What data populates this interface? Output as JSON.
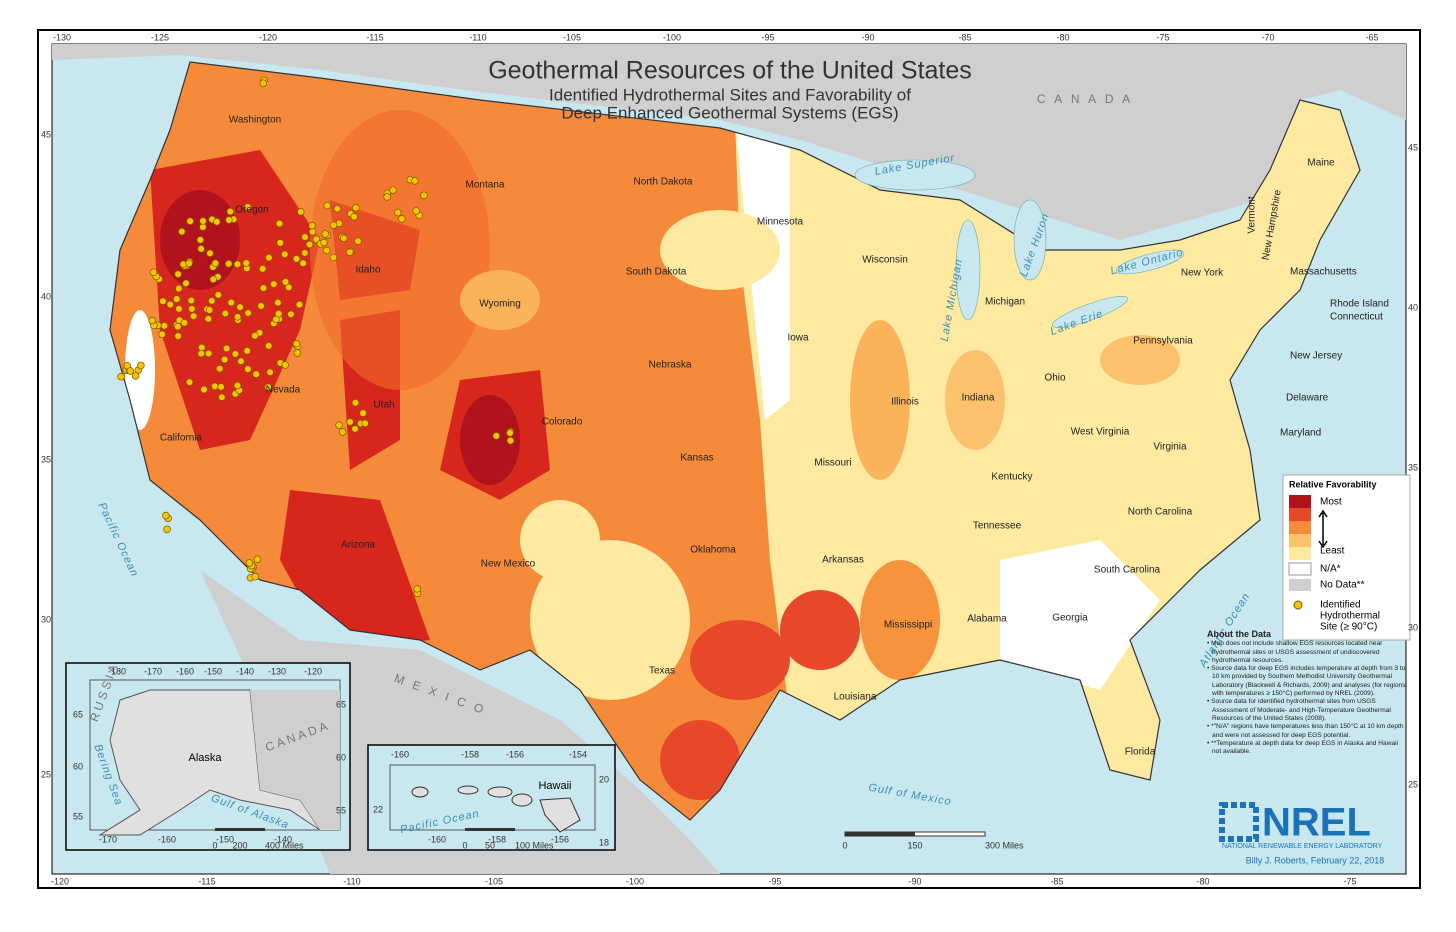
{
  "title": "Geothermal Resources of the United States",
  "subtitle": [
    "Identified Hydrothermal Sites and Favorability of",
    "Deep Enhanced Geothermal Systems (EGS)"
  ],
  "graticule": {
    "top": [
      "-130",
      "-125",
      "-120",
      "-115",
      "-110",
      "-105",
      "-100",
      "-95",
      "-90",
      "-85",
      "-80",
      "-75",
      "-70",
      "-65"
    ],
    "bottom": [
      "-120",
      "-115",
      "-110",
      "-105",
      "-100",
      "-95",
      "-90",
      "-85",
      "-80",
      "-75"
    ],
    "left": [
      "45",
      "40",
      "35",
      "30",
      "25"
    ],
    "right": [
      "45",
      "40",
      "35",
      "30",
      "25"
    ]
  },
  "states": [
    "Washington",
    "Oregon",
    "Montana",
    "North Dakota",
    "Minnesota",
    "Wisconsin",
    "Michigan",
    "Idaho",
    "Wyoming",
    "South Dakota",
    "Iowa",
    "Nebraska",
    "Nevada",
    "Utah",
    "Colorado",
    "Kansas",
    "Missouri",
    "Illinois",
    "Indiana",
    "Ohio",
    "Pennsylvania",
    "New York",
    "Maine",
    "Vermont",
    "New Hampshire",
    "Massachusetts",
    "Rhode Island",
    "Connecticut",
    "New Jersey",
    "Delaware",
    "Maryland",
    "West Virginia",
    "Virginia",
    "Kentucky",
    "Tennessee",
    "North Carolina",
    "South Carolina",
    "Georgia",
    "Alabama",
    "Mississippi",
    "Arkansas",
    "Louisiana",
    "Oklahoma",
    "Texas",
    "New Mexico",
    "Arizona",
    "California",
    "Florida"
  ],
  "regions": [
    "C A N A D A",
    "M E X I C O"
  ],
  "waters": [
    "Pacific Ocean",
    "Atlantic Ocean",
    "Gulf of Mexico",
    "Lake Superior",
    "Lake Michigan",
    "Lake Huron",
    "Lake Erie",
    "Lake Ontario"
  ],
  "legend": {
    "title": "Relative Favorability",
    "most": "Most",
    "least": "Least",
    "na": "N/A*",
    "no_data": "No Data**",
    "site": [
      "Identified",
      "Hydrothermal",
      "Site (≥ 90°C)"
    ]
  },
  "about": {
    "heading": "About the Data",
    "notes": [
      "Map does not include shallow EGS resources located near hydrothermal sites or USGS assessment of undiscovered hydrothermal resources.",
      "Source data for deep EGS includes temperature at depth from 3 to 10 km provided by Southern Methodist University Geothermal Laboratory (Blackwell & Richards, 2009) and analyses (for regions with temperatures ≥ 150°C) performed by NREL (2009).",
      "Source data for identified hydrothermal sites from USGS Assessment of Moderate- and High-Temperature Geothermal Resources of the United States (2008).",
      "*\"N/A\" regions have temperatures less than 150°C at 10 km depth and were not assessed for deep EGS potential.",
      "**Temperature at depth data for deep EGS in Alaska and Hawaii not available."
    ]
  },
  "logo": {
    "name": "NREL",
    "full": "NATIONAL RENEWABLE ENERGY LABORATORY"
  },
  "credit": "Billy J. Roberts, February 22, 2018",
  "scale": [
    "0",
    "150",
    "300 Miles"
  ],
  "alaska": {
    "label": "Alaska",
    "places": [
      "RUSSIA",
      "CANADA",
      "Bering Sea",
      "Gulf of Alaska"
    ],
    "top": [
      "-180",
      "-170",
      "-160",
      "-150",
      "-140",
      "-130",
      "-120"
    ],
    "bottom": [
      "-170",
      "-160",
      "-150",
      "-140"
    ],
    "left": [
      "65",
      "60",
      "55"
    ],
    "right": [
      "65",
      "60",
      "55"
    ],
    "scale": [
      "0",
      "200",
      "400 Miles"
    ]
  },
  "hawaii": {
    "label": "Hawaii",
    "places": [
      "Pacific Ocean"
    ],
    "top": [
      "-160",
      "-158",
      "-156",
      "-154"
    ],
    "bottom": [
      "-160",
      "-158",
      "-156"
    ],
    "left": [
      "22"
    ],
    "right": [
      "20",
      "18"
    ],
    "scale": [
      "0",
      "50",
      "100 Miles"
    ]
  }
}
